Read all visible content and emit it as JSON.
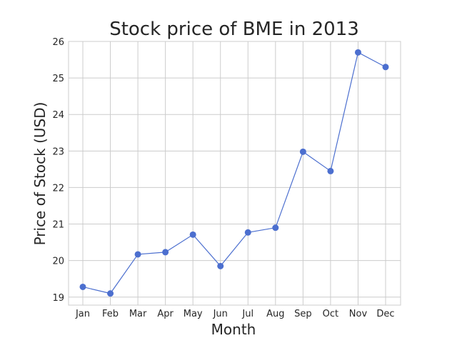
{
  "chart_data": {
    "type": "line",
    "title": "Stock price of BME in 2013",
    "xlabel": "Month",
    "ylabel": "Price of Stock (USD)",
    "categories": [
      "Jan",
      "Feb",
      "Mar",
      "Apr",
      "May",
      "Jun",
      "Jul",
      "Aug",
      "Sep",
      "Oct",
      "Nov",
      "Dec"
    ],
    "series": [
      {
        "values": [
          19.28,
          19.1,
          20.17,
          20.23,
          20.71,
          19.85,
          20.77,
          20.9,
          22.98,
          22.45,
          25.7,
          25.3
        ]
      }
    ],
    "yticks": [
      19,
      20,
      21,
      22,
      23,
      24,
      25,
      26
    ],
    "ylim": [
      18.78,
      26
    ],
    "grid": true,
    "line_color": "#4c6fcf",
    "grid_color": "#cccccc"
  }
}
